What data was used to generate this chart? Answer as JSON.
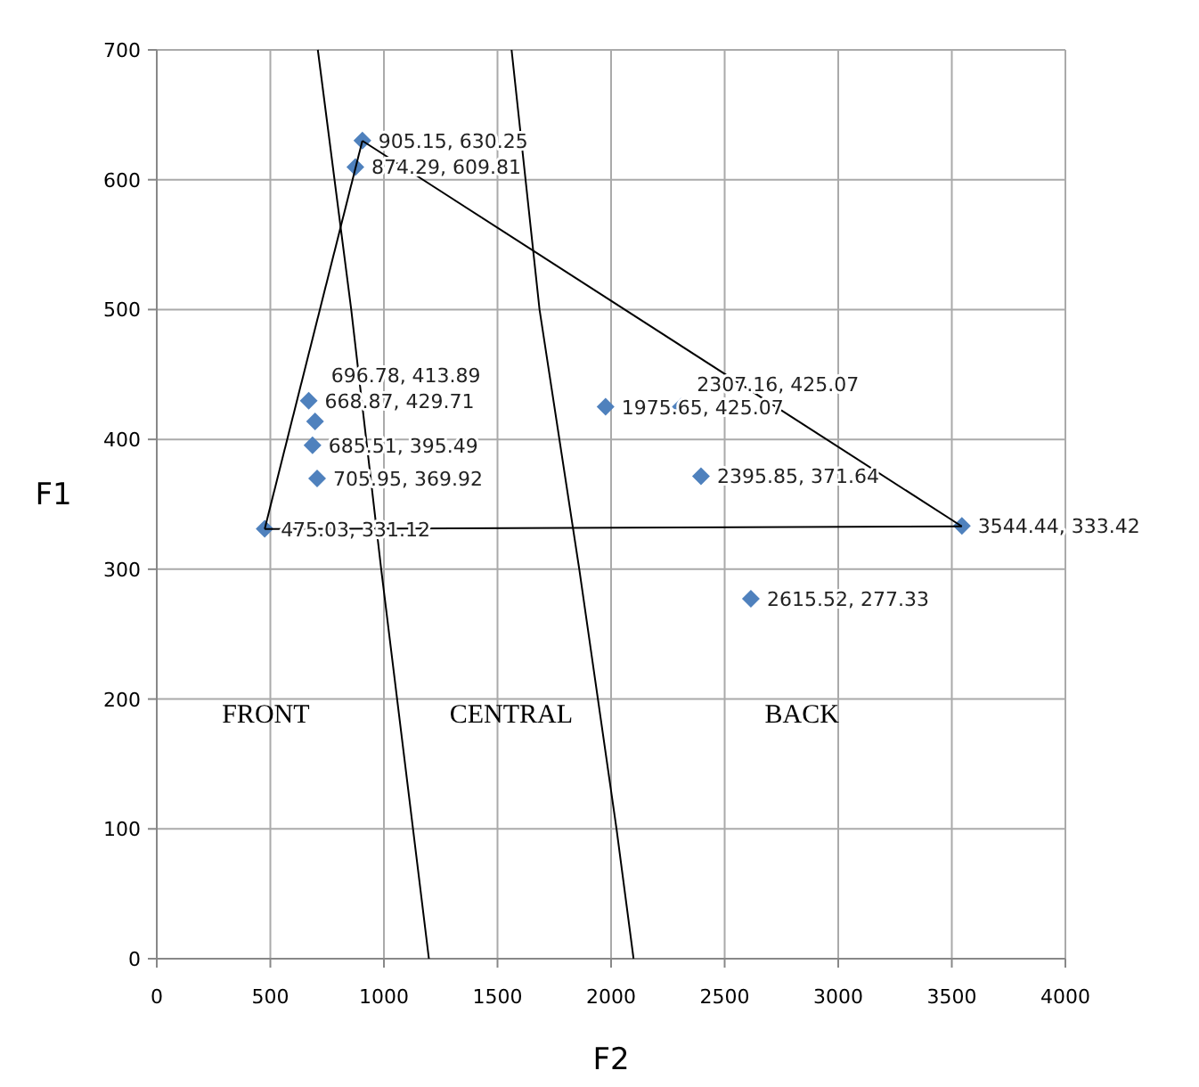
{
  "chart_data": {
    "type": "scatter",
    "xlabel": "F2",
    "ylabel": "F1",
    "xlim": [
      0,
      4000
    ],
    "ylim": [
      0,
      700
    ],
    "xticks": [
      0,
      500,
      1000,
      1500,
      2000,
      2500,
      3000,
      3500,
      4000
    ],
    "yticks": [
      0,
      100,
      200,
      300,
      400,
      500,
      600,
      700
    ],
    "grid": true,
    "marker": "diamond",
    "series": [
      {
        "color": "#4f81bd",
        "x": [
          905.15,
          874.29,
          668.87,
          696.78,
          685.51,
          705.95,
          475.03,
          1975.65,
          2307.16,
          2395.85,
          3544.44,
          2615.52
        ],
        "values": [
          630.25,
          609.81,
          429.71,
          413.89,
          395.49,
          369.92,
          331.12,
          425.07,
          425.07,
          371.64,
          333.42,
          277.33
        ],
        "value_labels": [
          "905.15, 630.25",
          "874.29, 609.81",
          "668.87, 429.71",
          "696.78, 413.89",
          "685.51, 395.49",
          "705.95, 369.92",
          "475.03, 331.12",
          "1975.65, 425.07",
          "2307.16, 425.07",
          "2395.85, 371.64",
          "3544.44, 333.42",
          "2615.52, 277.33"
        ]
      },
      {
        "type": "line",
        "color": "#000000",
        "marker": "none",
        "x": [
          475,
          905
        ],
        "values": [
          331,
          630
        ]
      },
      {
        "type": "line",
        "color": "#000000",
        "marker": "none",
        "x": [
          905,
          3544
        ],
        "values": [
          630,
          333
        ]
      },
      {
        "type": "line",
        "color": "#000000",
        "marker": "none",
        "x": [
          475,
          3544
        ],
        "values": [
          331,
          333
        ]
      },
      {
        "type": "line",
        "color": "#000000",
        "marker": "none",
        "x": [
          709,
          856,
          988,
          1198
        ],
        "values": [
          700,
          500,
          300,
          0
        ]
      },
      {
        "type": "line",
        "color": "#000000",
        "marker": "none",
        "x": [
          1562,
          1685,
          1860,
          2024,
          2099
        ],
        "values": [
          700,
          500,
          300,
          100,
          0
        ]
      }
    ],
    "annotations": [
      "FRONT",
      "CENTRAL",
      "BACK"
    ]
  }
}
